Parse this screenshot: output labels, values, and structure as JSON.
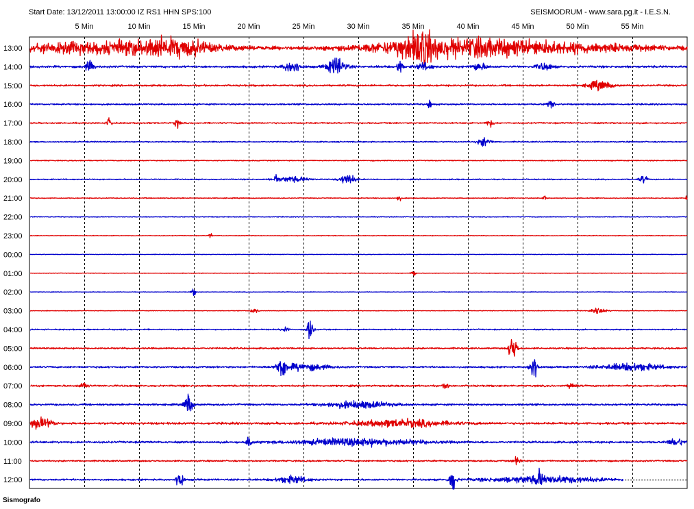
{
  "header": {
    "start_date": "Start Date: 13/12/2011 13:00:00 IZ RS1 HHN SPS:100",
    "source": "SEISMODRUM - www.sara.pg.it - I.E.S.N."
  },
  "footer": {
    "label": "Sismografo"
  },
  "chart_data": {
    "type": "line",
    "title": "",
    "x_ticks": [
      "5 Min",
      "10 Min",
      "15 Min",
      "20 Min",
      "25 Min",
      "30 Min",
      "35 Min",
      "40 Min",
      "45 Min",
      "50 Min",
      "55 Min"
    ],
    "x_range_minutes": [
      0,
      60
    ],
    "grid": "vertical dashed every 5 min",
    "colors": {
      "odd_trace": "#e00000",
      "even_trace": "#0000cc"
    },
    "rows": [
      {
        "label": "13:00",
        "noise": 2.5,
        "events": [
          [
            5,
            15,
            6
          ],
          [
            13,
            5,
            8
          ],
          [
            34.5,
            2,
            5
          ],
          [
            36,
            1.5,
            10
          ],
          [
            38,
            10,
            6
          ],
          [
            45,
            17,
            6
          ]
        ]
      },
      {
        "label": "14:00",
        "noise": 2.2,
        "events": [
          [
            5.5,
            0.6,
            6
          ],
          [
            24,
            1,
            7
          ],
          [
            28,
            1.2,
            10
          ],
          [
            33.8,
            0.3,
            12
          ],
          [
            36,
            1,
            4
          ],
          [
            41,
            1,
            4
          ],
          [
            47,
            1,
            4
          ]
        ]
      },
      {
        "label": "15:00",
        "noise": 1.8,
        "events": [
          [
            52,
            1.5,
            5
          ]
        ]
      },
      {
        "label": "16:00",
        "noise": 1.6,
        "events": [
          [
            36.5,
            0.3,
            5
          ],
          [
            47.5,
            0.5,
            4
          ]
        ]
      },
      {
        "label": "17:00",
        "noise": 1.4,
        "events": [
          [
            7.3,
            0.3,
            6
          ],
          [
            13.5,
            0.3,
            7
          ],
          [
            42,
            0.5,
            4
          ]
        ]
      },
      {
        "label": "18:00",
        "noise": 1.2,
        "events": [
          [
            41.5,
            0.8,
            5
          ]
        ]
      },
      {
        "label": "19:00",
        "noise": 1.0,
        "events": []
      },
      {
        "label": "20:00",
        "noise": 1.1,
        "events": [
          [
            22.5,
            0.2,
            8
          ],
          [
            24,
            2,
            3
          ],
          [
            29,
            1,
            6
          ],
          [
            56,
            0.5,
            4
          ]
        ]
      },
      {
        "label": "21:00",
        "noise": 0.9,
        "events": [
          [
            33.7,
            0.2,
            6
          ],
          [
            47,
            0.2,
            4
          ],
          [
            60,
            0.2,
            4
          ]
        ]
      },
      {
        "label": "22:00",
        "noise": 0.8,
        "events": []
      },
      {
        "label": "23:00",
        "noise": 0.7,
        "events": [
          [
            16.5,
            0.2,
            3
          ]
        ]
      },
      {
        "label": "00:00",
        "noise": 0.6,
        "events": []
      },
      {
        "label": "01:00",
        "noise": 0.6,
        "events": [
          [
            35,
            0.3,
            4
          ]
        ]
      },
      {
        "label": "02:00",
        "noise": 0.6,
        "events": [
          [
            15,
            0.3,
            4
          ]
        ]
      },
      {
        "label": "03:00",
        "noise": 0.6,
        "events": [
          [
            20.5,
            0.5,
            3
          ],
          [
            52,
            1,
            3
          ]
        ]
      },
      {
        "label": "04:00",
        "noise": 1.2,
        "events": [
          [
            23.3,
            0.4,
            4
          ],
          [
            25.6,
            0.4,
            12
          ]
        ]
      },
      {
        "label": "05:00",
        "noise": 1.6,
        "events": [
          [
            44.1,
            0.5,
            16
          ]
        ]
      },
      {
        "label": "06:00",
        "noise": 1.8,
        "events": [
          [
            23,
            0.5,
            14
          ],
          [
            25,
            3,
            4
          ],
          [
            46,
            0.5,
            16
          ],
          [
            55,
            4,
            4
          ]
        ]
      },
      {
        "label": "07:00",
        "noise": 1.8,
        "events": [
          [
            5,
            0.5,
            4
          ],
          [
            38,
            0.3,
            5
          ],
          [
            49.5,
            0.4,
            5
          ]
        ]
      },
      {
        "label": "08:00",
        "noise": 2.0,
        "events": [
          [
            14.5,
            0.5,
            12
          ],
          [
            30,
            4,
            4
          ]
        ]
      },
      {
        "label": "09:00",
        "noise": 2.2,
        "events": [
          [
            1,
            1.5,
            6
          ],
          [
            34,
            6,
            4
          ]
        ]
      },
      {
        "label": "10:00",
        "noise": 2.0,
        "events": [
          [
            20,
            0.3,
            8
          ],
          [
            30,
            8,
            4
          ],
          [
            59,
            1,
            4
          ]
        ]
      },
      {
        "label": "11:00",
        "noise": 1.6,
        "events": [
          [
            44.5,
            0.5,
            4
          ]
        ]
      },
      {
        "label": "12:00",
        "noise": 1.8,
        "events": [
          [
            13.7,
            0.4,
            14
          ],
          [
            24,
            2,
            4
          ],
          [
            38.6,
            0.4,
            14
          ],
          [
            46.5,
            0.4,
            8
          ],
          [
            47,
            7,
            4
          ]
        ],
        "end_minute": 54.2
      }
    ]
  }
}
